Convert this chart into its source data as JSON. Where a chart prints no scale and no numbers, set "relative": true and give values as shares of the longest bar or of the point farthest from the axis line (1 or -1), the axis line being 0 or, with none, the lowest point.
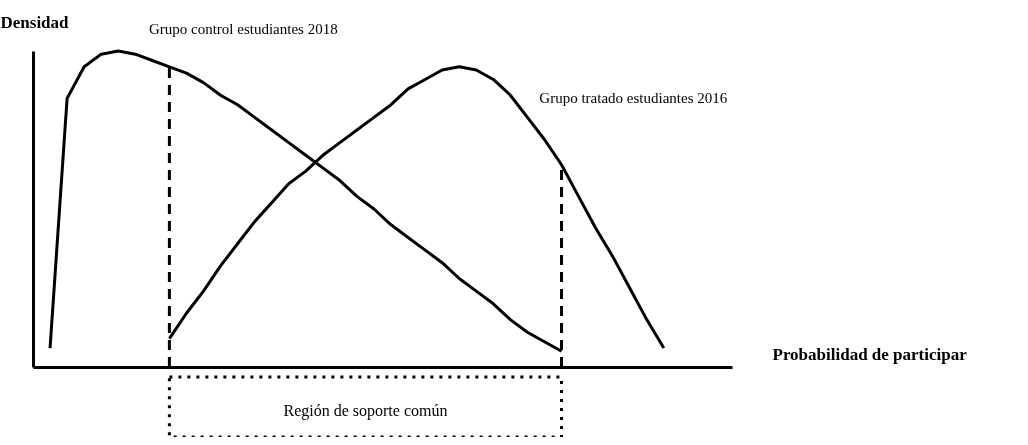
{
  "chart_data": {
    "type": "line",
    "relative": true,
    "xlabel": "Probabilidad de participar",
    "ylabel": "Densidad",
    "grid": false,
    "categories": [
      null,
      null,
      null,
      null,
      null,
      null,
      null,
      null,
      null,
      null,
      null,
      null,
      null,
      null,
      null,
      null,
      null,
      null,
      null,
      null,
      null,
      null,
      null,
      null,
      null,
      null,
      null,
      null,
      null,
      null,
      null,
      null,
      null,
      null,
      null,
      null,
      null,
      null,
      null,
      null,
      null,
      null
    ],
    "series": [
      {
        "name": "Grupo control estudiantes 2018",
        "color": "#000000",
        "values": [
          null,
          0.06,
          0.85,
          0.95,
          0.99,
          1.0,
          0.99,
          0.97,
          0.95,
          0.93,
          0.9,
          0.86,
          0.83,
          0.79,
          0.75,
          0.71,
          0.67,
          0.63,
          0.59,
          0.54,
          0.5,
          0.45,
          0.41,
          0.37,
          0.33,
          0.28,
          0.24,
          0.2,
          0.15,
          0.11,
          0.08,
          0.05,
          null,
          null,
          null,
          null,
          null,
          null,
          null,
          null,
          null,
          null
        ]
      },
      {
        "name": "Grupo tratado estudiantes 2016",
        "color": "#000000",
        "values": [
          null,
          null,
          null,
          null,
          null,
          null,
          null,
          null,
          0.09,
          0.17,
          0.24,
          0.32,
          0.39,
          0.46,
          0.52,
          0.58,
          0.62,
          0.67,
          0.71,
          0.75,
          0.79,
          0.83,
          0.88,
          0.91,
          0.94,
          0.95,
          0.94,
          0.91,
          0.86,
          0.79,
          0.72,
          0.64,
          0.54,
          0.44,
          0.35,
          0.25,
          0.15,
          0.06,
          null,
          null,
          null,
          null
        ]
      }
    ],
    "annotations": [
      "Región de soporte común"
    ]
  }
}
